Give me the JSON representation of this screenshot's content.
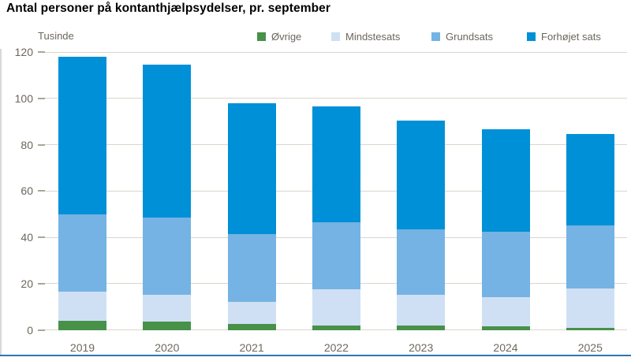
{
  "title": "Antal personer på kontanthjælpsydelser, pr. september",
  "axis": {
    "unit_label": "Tusinde",
    "y_ticks": [
      0,
      20,
      40,
      60,
      80,
      100,
      120
    ],
    "ylim": [
      0,
      120
    ]
  },
  "chart_data": {
    "type": "bar",
    "stacked": true,
    "title": "Antal personer på kontanthjælpsydelser, pr. september",
    "xlabel": "",
    "ylabel": "Tusinde",
    "ylim": [
      0,
      120
    ],
    "grid": true,
    "legend_position": "top",
    "categories": [
      "2019",
      "2020",
      "2021",
      "2022",
      "2023",
      "2024",
      "2025"
    ],
    "series": [
      {
        "name": "Øvrige",
        "color": "#479149",
        "values": [
          4.0,
          3.5,
          2.5,
          2.0,
          2.0,
          1.5,
          1.0
        ]
      },
      {
        "name": "Mindstesats",
        "color": "#cfe0f4",
        "values": [
          12.5,
          11.5,
          9.5,
          15.5,
          13.0,
          12.5,
          17.0
        ]
      },
      {
        "name": "Grundsats",
        "color": "#74b3e3",
        "values": [
          33.5,
          33.5,
          29.5,
          29.0,
          28.5,
          28.5,
          27.0
        ]
      },
      {
        "name": "Forhøjet sats",
        "color": "#0090d7",
        "values": [
          68.0,
          66.0,
          56.5,
          50.0,
          47.0,
          44.0,
          39.5
        ]
      }
    ],
    "totals": [
      118.0,
      114.5,
      98.0,
      96.5,
      90.5,
      86.5,
      84.5
    ]
  },
  "colors": {
    "gridline": "#dad6cd",
    "axis_text": "#6b675c",
    "bottom_border": "#2e74b5"
  }
}
